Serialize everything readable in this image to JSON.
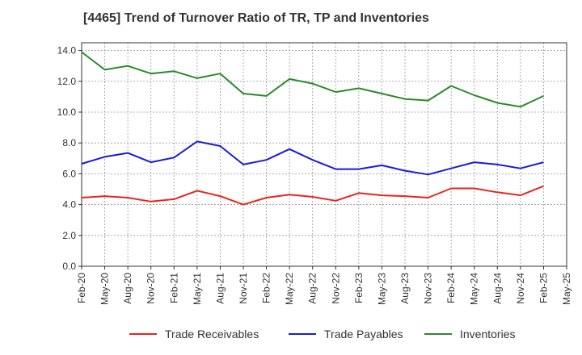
{
  "chart_data": {
    "type": "line",
    "title": "[4465]  Trend of Turnover Ratio of TR, TP and Inventories",
    "xlabel": "",
    "ylabel": "",
    "ylim": [
      0,
      14.5
    ],
    "yticks": [
      "0.0",
      "2.0",
      "4.0",
      "6.0",
      "8.0",
      "10.0",
      "12.0",
      "14.0"
    ],
    "categories": [
      "Feb-20",
      "May-20",
      "Aug-20",
      "Nov-20",
      "Feb-21",
      "May-21",
      "Aug-21",
      "Nov-21",
      "Feb-22",
      "May-22",
      "Aug-22",
      "Nov-22",
      "Feb-23",
      "May-23",
      "Aug-23",
      "Nov-23",
      "Feb-24",
      "May-24",
      "Aug-24",
      "Nov-24",
      "Feb-25",
      "May-25"
    ],
    "grid": true,
    "legend_position": "bottom",
    "series": [
      {
        "name": "Trade Receivables",
        "color": "#e8251d",
        "values": [
          4.45,
          4.55,
          4.45,
          4.2,
          4.35,
          4.9,
          4.55,
          4.0,
          4.45,
          4.65,
          4.5,
          4.25,
          4.75,
          4.6,
          4.55,
          4.45,
          5.05,
          5.05,
          4.8,
          4.6,
          5.2,
          null
        ]
      },
      {
        "name": "Trade Payables",
        "color": "#1a1adb",
        "values": [
          6.65,
          7.1,
          7.35,
          6.75,
          7.05,
          8.1,
          7.8,
          6.6,
          6.9,
          7.6,
          6.9,
          6.3,
          6.3,
          6.55,
          6.2,
          5.95,
          6.35,
          6.75,
          6.6,
          6.35,
          6.75,
          null
        ]
      },
      {
        "name": "Inventories",
        "color": "#2a8a2a",
        "values": [
          13.9,
          12.75,
          13.0,
          12.5,
          12.65,
          12.2,
          12.5,
          11.2,
          11.05,
          12.15,
          11.85,
          11.3,
          11.55,
          11.2,
          10.85,
          10.75,
          11.7,
          11.1,
          10.6,
          10.35,
          11.05,
          null
        ]
      }
    ]
  }
}
